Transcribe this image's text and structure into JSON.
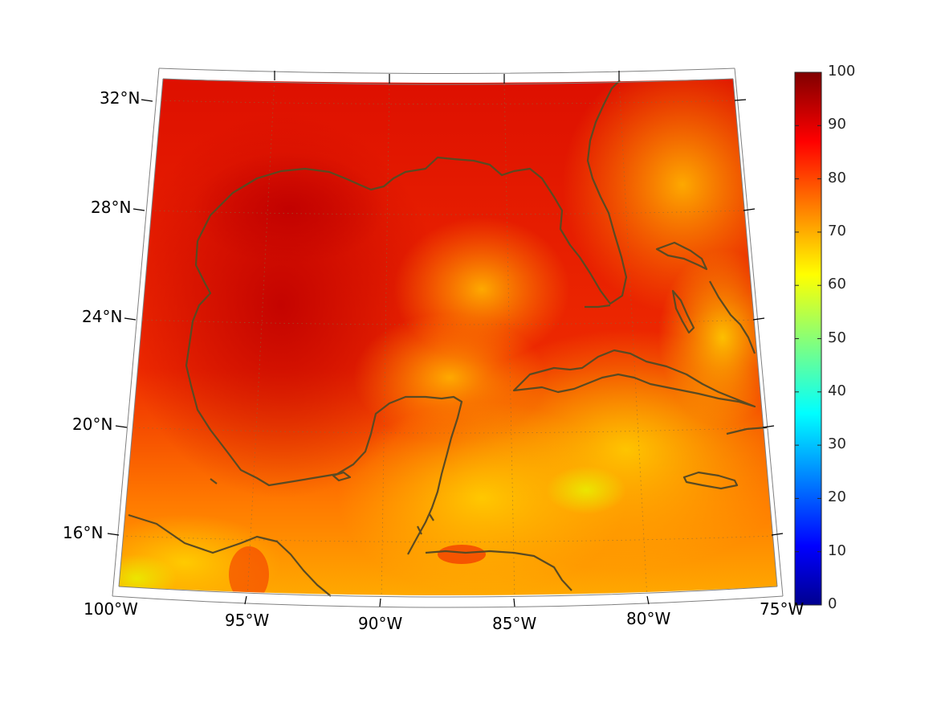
{
  "map": {
    "projection": "lambert-conic",
    "lon_range": [
      -100,
      -75
    ],
    "lat_range": [
      14,
      33
    ],
    "graticule_dotted": true,
    "lat_labels": [
      "32°N",
      "28°N",
      "24°N",
      "20°N",
      "16°N"
    ],
    "lon_labels": [
      "100°W",
      "95°W",
      "90°W",
      "85°W",
      "80°W",
      "75°W"
    ],
    "coastline_color": "#5a4a22"
  },
  "colorbar": {
    "colormap": "jet",
    "range": [
      0,
      100
    ],
    "ticks": [
      "0",
      "10",
      "20",
      "30",
      "40",
      "50",
      "60",
      "70",
      "80",
      "90",
      "100"
    ]
  }
}
